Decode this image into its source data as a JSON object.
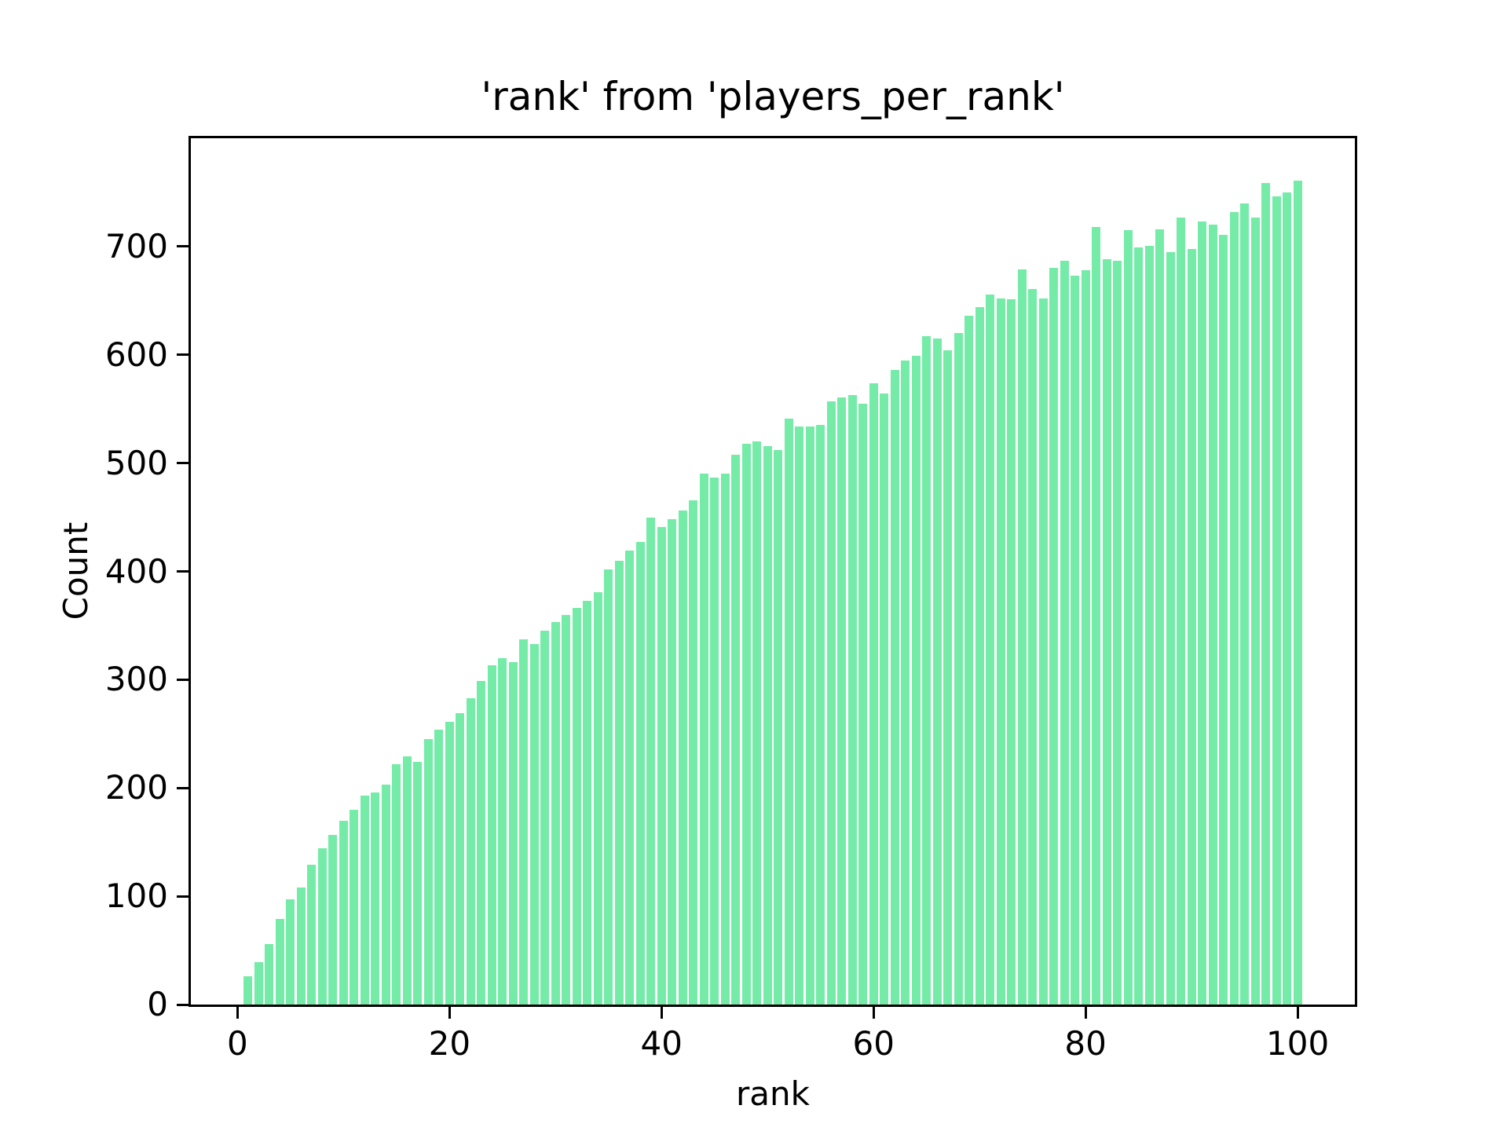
{
  "chart_data": {
    "type": "bar",
    "title": "'rank' from 'players_per_rank'",
    "xlabel": "rank",
    "ylabel": "Count",
    "bar_color": "#75EBA8",
    "bar_width": 0.8,
    "grid": false,
    "legend": null,
    "xlim": [
      -4.4,
      105.4
    ],
    "ylim": [
      0,
      800
    ],
    "xticks": [
      0,
      20,
      40,
      60,
      80,
      100
    ],
    "yticks": [
      0,
      100,
      200,
      300,
      400,
      500,
      600,
      700
    ],
    "x": [
      1,
      2,
      3,
      4,
      5,
      6,
      7,
      8,
      9,
      10,
      11,
      12,
      13,
      14,
      15,
      16,
      17,
      18,
      19,
      20,
      21,
      22,
      23,
      24,
      25,
      26,
      27,
      28,
      29,
      30,
      31,
      32,
      33,
      34,
      35,
      36,
      37,
      38,
      39,
      40,
      41,
      42,
      43,
      44,
      45,
      46,
      47,
      48,
      49,
      50,
      51,
      52,
      53,
      54,
      55,
      56,
      57,
      58,
      59,
      60,
      61,
      62,
      63,
      64,
      65,
      66,
      67,
      68,
      69,
      70,
      71,
      72,
      73,
      74,
      75,
      76,
      77,
      78,
      79,
      80,
      81,
      82,
      83,
      84,
      85,
      86,
      87,
      88,
      89,
      90,
      91,
      92,
      93,
      94,
      95,
      96,
      97,
      98,
      99,
      100
    ],
    "values": [
      26,
      39,
      56,
      79,
      97,
      108,
      129,
      144,
      157,
      170,
      180,
      193,
      196,
      203,
      222,
      229,
      224,
      245,
      254,
      261,
      269,
      283,
      299,
      313,
      320,
      316,
      337,
      333,
      345,
      353,
      360,
      366,
      373,
      381,
      402,
      410,
      419,
      427,
      450,
      441,
      448,
      456,
      466,
      490,
      487,
      490,
      508,
      518,
      520,
      516,
      512,
      541,
      534,
      534,
      535,
      557,
      561,
      563,
      555,
      574,
      564,
      586,
      595,
      599,
      617,
      615,
      604,
      620,
      636,
      644,
      656,
      652,
      651,
      679,
      661,
      652,
      680,
      687,
      673,
      678,
      718,
      688,
      687,
      715,
      699,
      701,
      716,
      695,
      727,
      698,
      723,
      720,
      711,
      732,
      740,
      727,
      759,
      746,
      750,
      761
    ]
  }
}
